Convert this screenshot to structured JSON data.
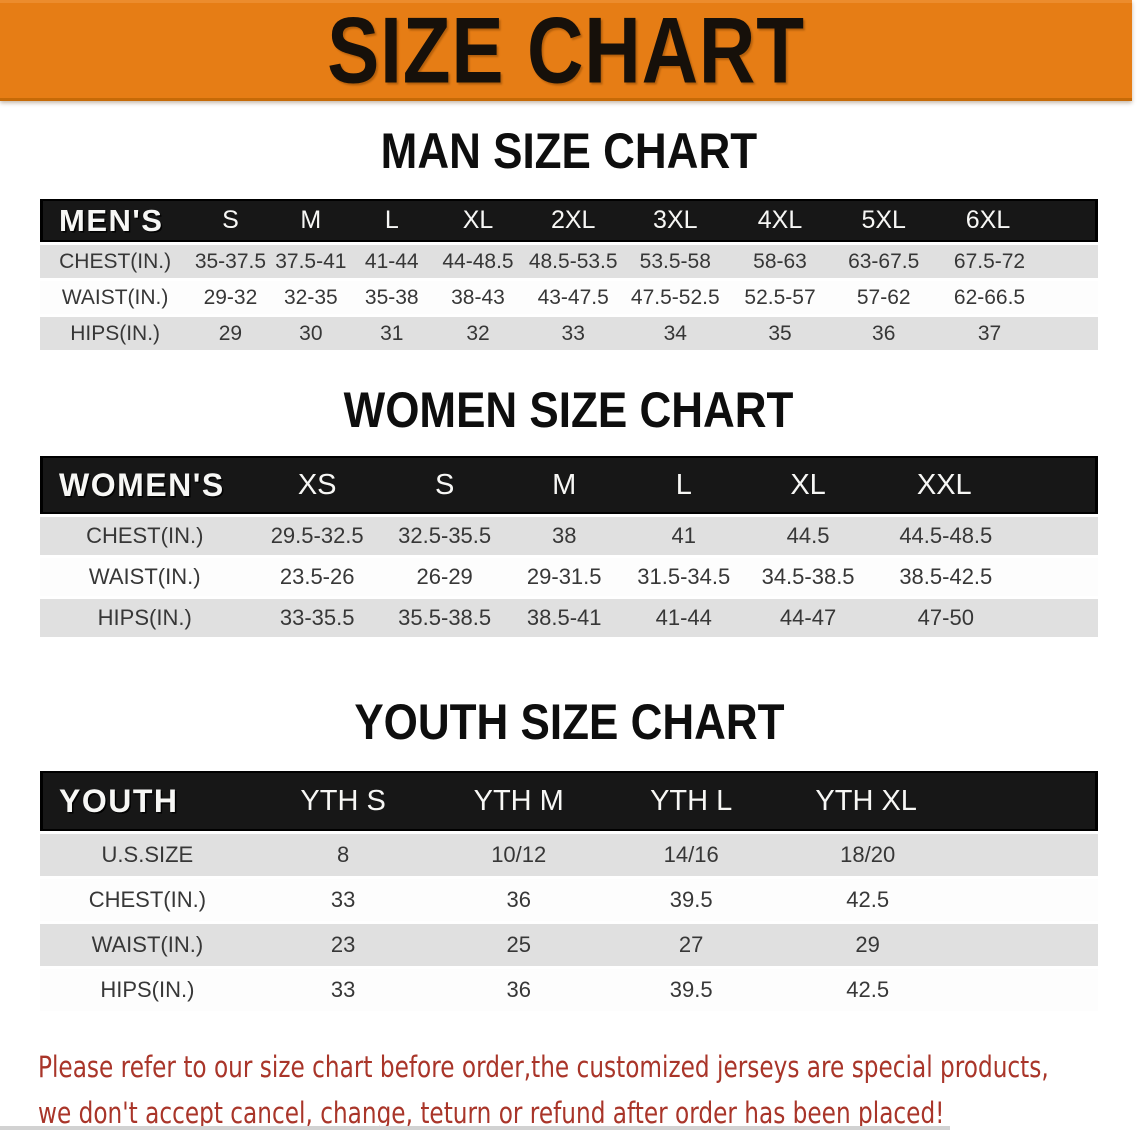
{
  "banner": {
    "title": "SIZE CHART"
  },
  "sections": [
    {
      "title": "MAN SIZE CHART",
      "header_label": "MEN'S",
      "columns": [
        "S",
        "M",
        "L",
        "XL",
        "2XL",
        "3XL",
        "4XL",
        "5XL",
        "6XL"
      ],
      "rows": [
        {
          "label": "CHEST(IN.)",
          "values": [
            "35-37.5",
            "37.5-41",
            "41-44",
            "44-48.5",
            "48.5-53.5",
            "53.5-58",
            "58-63",
            "63-67.5",
            "67.5-72"
          ]
        },
        {
          "label": "WAIST(IN.)",
          "values": [
            "29-32",
            "32-35",
            "35-38",
            "38-43",
            "43-47.5",
            "47.5-52.5",
            "52.5-57",
            "57-62",
            "62-66.5"
          ]
        },
        {
          "label": "HIPS(IN.)",
          "values": [
            "29",
            "30",
            "31",
            "32",
            "33",
            "34",
            "35",
            "36",
            "37"
          ]
        }
      ]
    },
    {
      "title": "WOMEN SIZE CHART",
      "header_label": "WOMEN'S",
      "columns": [
        "XS",
        "S",
        "M",
        "L",
        "XL",
        "XXL"
      ],
      "rows": [
        {
          "label": "CHEST(IN.)",
          "values": [
            "29.5-32.5",
            "32.5-35.5",
            "38",
            "41",
            "44.5",
            "44.5-48.5"
          ]
        },
        {
          "label": "WAIST(IN.)",
          "values": [
            "23.5-26",
            "26-29",
            "29-31.5",
            "31.5-34.5",
            "34.5-38.5",
            "38.5-42.5"
          ]
        },
        {
          "label": "HIPS(IN.)",
          "values": [
            "33-35.5",
            "35.5-38.5",
            "38.5-41",
            "41-44",
            "44-47",
            "47-50"
          ]
        }
      ]
    },
    {
      "title": "YOUTH SIZE CHART",
      "header_label": "YOUTH",
      "columns": [
        "YTH S",
        "YTH M",
        "YTH L",
        "YTH XL"
      ],
      "rows": [
        {
          "label": "U.S.SIZE",
          "values": [
            "8",
            "10/12",
            "14/16",
            "18/20"
          ]
        },
        {
          "label": "CHEST(IN.)",
          "values": [
            "33",
            "36",
            "39.5",
            "42.5"
          ]
        },
        {
          "label": "WAIST(IN.)",
          "values": [
            "23",
            "25",
            "27",
            "29"
          ]
        },
        {
          "label": "HIPS(IN.)",
          "values": [
            "33",
            "36",
            "39.5",
            "42.5"
          ]
        }
      ]
    }
  ],
  "footer": {
    "line1": "Please refer to our size chart before order,the customized jerseys are special products,",
    "line2": "we don't accept cancel, change, teturn or refund after order has been placed!"
  },
  "colors": {
    "banner_orange": "#e67d15",
    "table_header_black": "#171717",
    "row_gray": "#e0e0e0",
    "row_white": "#fdfdfd",
    "body_text": "#373737",
    "title_black": "#0e0e0e",
    "disclaimer_red": "#a93529"
  }
}
